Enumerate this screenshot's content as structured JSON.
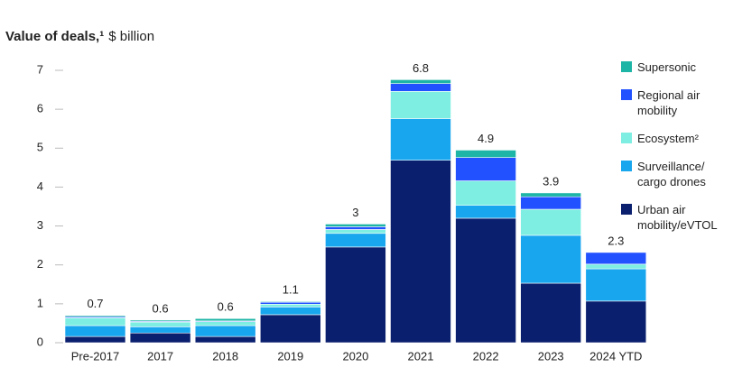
{
  "chart_data": {
    "type": "stacked_bar",
    "title": "Value of deals,¹",
    "unit": "$ billion",
    "categories": [
      "Pre-2017",
      "2017",
      "2018",
      "2019",
      "2020",
      "2021",
      "2022",
      "2023",
      "2024 YTD"
    ],
    "series": [
      {
        "name": "Urban air mobility/eVTOL",
        "color": "#0a1f6e",
        "values": [
          0.16,
          0.25,
          0.16,
          0.72,
          2.46,
          4.69,
          3.2,
          1.53,
          1.07
        ]
      },
      {
        "name": "Surveillance/ cargo drones",
        "color": "#18a6ee",
        "values": [
          0.28,
          0.16,
          0.28,
          0.2,
          0.35,
          1.07,
          0.33,
          1.23,
          0.83
        ]
      },
      {
        "name": "Ecosystem²",
        "color": "#7eeee2",
        "values": [
          0.2,
          0.12,
          0.1,
          0.07,
          0.1,
          0.7,
          0.63,
          0.67,
          0.12
        ]
      },
      {
        "name": "Regional air mobility",
        "color": "#2251ff",
        "values": [
          0.03,
          0.02,
          0.02,
          0.05,
          0.07,
          0.2,
          0.6,
          0.32,
          0.3
        ]
      },
      {
        "name": "Supersonic",
        "color": "#1db5a6",
        "values": [
          0.03,
          0.03,
          0.06,
          0.02,
          0.07,
          0.1,
          0.19,
          0.1,
          0
        ]
      }
    ],
    "totals": [
      0.7,
      0.6,
      0.6,
      1.1,
      3.0,
      6.8,
      4.9,
      3.9,
      2.3
    ],
    "ylim": [
      0,
      7
    ],
    "yticks": [
      0,
      1,
      2,
      3,
      4,
      5,
      6,
      7
    ],
    "legend": "right"
  }
}
